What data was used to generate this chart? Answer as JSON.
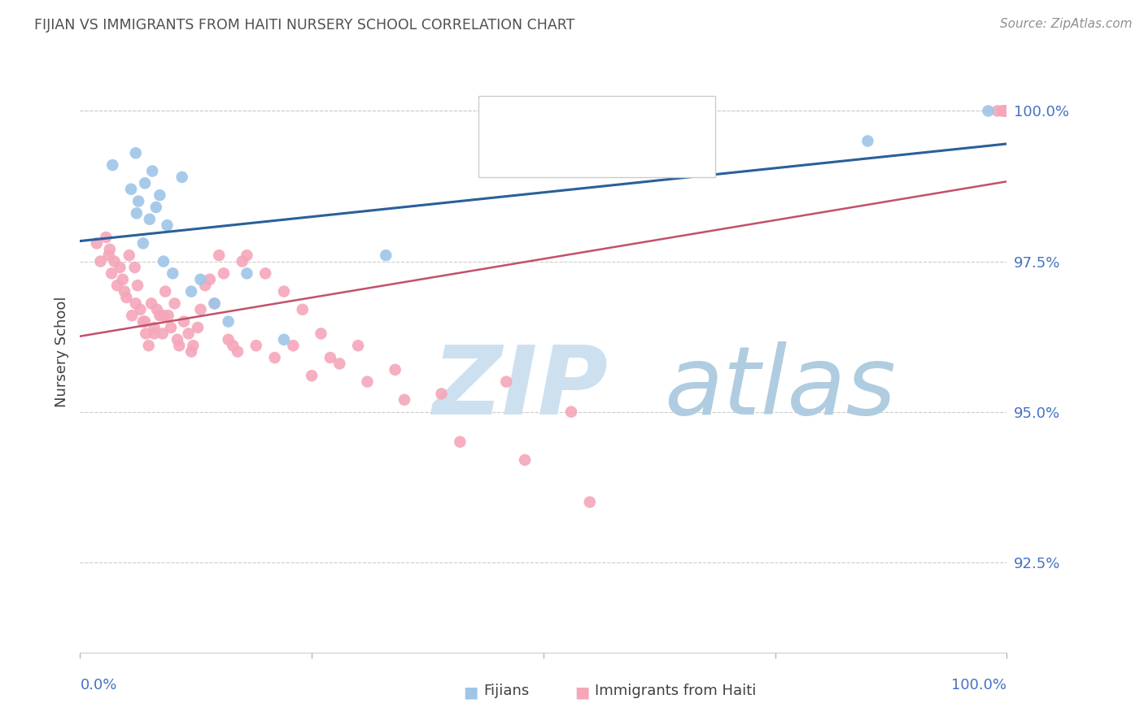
{
  "title": "FIJIAN VS IMMIGRANTS FROM HAITI NURSERY SCHOOL CORRELATION CHART",
  "source": "Source: ZipAtlas.com",
  "ylabel": "Nursery School",
  "ytick_color": "#4472c4",
  "title_color": "#505050",
  "source_color": "#909090",
  "blue_scatter_color": "#9fc5e8",
  "pink_scatter_color": "#f4a7b9",
  "blue_line_color": "#2a6099",
  "pink_line_color": "#c0526a",
  "grid_color": "#cccccc",
  "watermark_zip_color": "#cde0f0",
  "watermark_atlas_color": "#b0cce0",
  "xlim": [
    0.0,
    100.0
  ],
  "ylim": [
    91.0,
    101.0
  ],
  "ytick_vals": [
    92.5,
    95.0,
    97.5,
    100.0
  ],
  "fijian_x": [
    3.5,
    5.5,
    6.0,
    6.3,
    7.0,
    7.5,
    7.8,
    8.2,
    8.6,
    9.0,
    9.4,
    10.0,
    11.0,
    12.0,
    13.0,
    14.5,
    16.0,
    18.0,
    22.0,
    33.0,
    68.0,
    85.0,
    98.0,
    6.1,
    6.8
  ],
  "fijian_y": [
    99.1,
    98.7,
    99.3,
    98.5,
    98.8,
    98.2,
    99.0,
    98.4,
    98.6,
    97.5,
    98.1,
    97.3,
    98.9,
    97.0,
    97.2,
    96.8,
    96.5,
    97.3,
    96.2,
    97.6,
    99.3,
    99.5,
    100.0,
    98.3,
    97.8
  ],
  "haiti_x": [
    1.8,
    2.2,
    2.8,
    3.1,
    3.4,
    3.7,
    4.0,
    4.3,
    4.6,
    5.0,
    5.3,
    5.6,
    5.9,
    6.2,
    6.5,
    6.8,
    7.1,
    7.4,
    7.7,
    8.0,
    8.3,
    8.6,
    8.9,
    9.2,
    9.5,
    9.8,
    10.2,
    10.7,
    11.2,
    11.7,
    12.2,
    12.7,
    13.5,
    14.5,
    15.5,
    16.5,
    17.5,
    19.0,
    21.0,
    23.0,
    25.0,
    27.0,
    30.0,
    34.0,
    39.0,
    46.0,
    53.0,
    3.2,
    4.8,
    6.0,
    7.0,
    8.0,
    9.0,
    10.5,
    12.0,
    13.0,
    14.0,
    15.0,
    16.0,
    17.0,
    18.0,
    20.0,
    22.0,
    24.0,
    26.0,
    28.0,
    31.0,
    35.0,
    41.0,
    48.0,
    55.0,
    100.0,
    99.0,
    100.0,
    100.0,
    99.5,
    100.0,
    100.0,
    99.8,
    100.0
  ],
  "haiti_y": [
    97.8,
    97.5,
    97.9,
    97.6,
    97.3,
    97.5,
    97.1,
    97.4,
    97.2,
    96.9,
    97.6,
    96.6,
    97.4,
    97.1,
    96.7,
    96.5,
    96.3,
    96.1,
    96.8,
    96.4,
    96.7,
    96.6,
    96.3,
    97.0,
    96.6,
    96.4,
    96.8,
    96.1,
    96.5,
    96.3,
    96.1,
    96.4,
    97.1,
    96.8,
    97.3,
    96.1,
    97.5,
    96.1,
    95.9,
    96.1,
    95.6,
    95.9,
    96.1,
    95.7,
    95.3,
    95.5,
    95.0,
    97.7,
    97.0,
    96.8,
    96.5,
    96.3,
    96.6,
    96.2,
    96.0,
    96.7,
    97.2,
    97.6,
    96.2,
    96.0,
    97.6,
    97.3,
    97.0,
    96.7,
    96.3,
    95.8,
    95.5,
    95.2,
    94.5,
    94.2,
    93.5,
    100.0,
    100.0,
    100.0,
    100.0,
    100.0,
    100.0,
    100.0,
    100.0,
    100.0
  ]
}
